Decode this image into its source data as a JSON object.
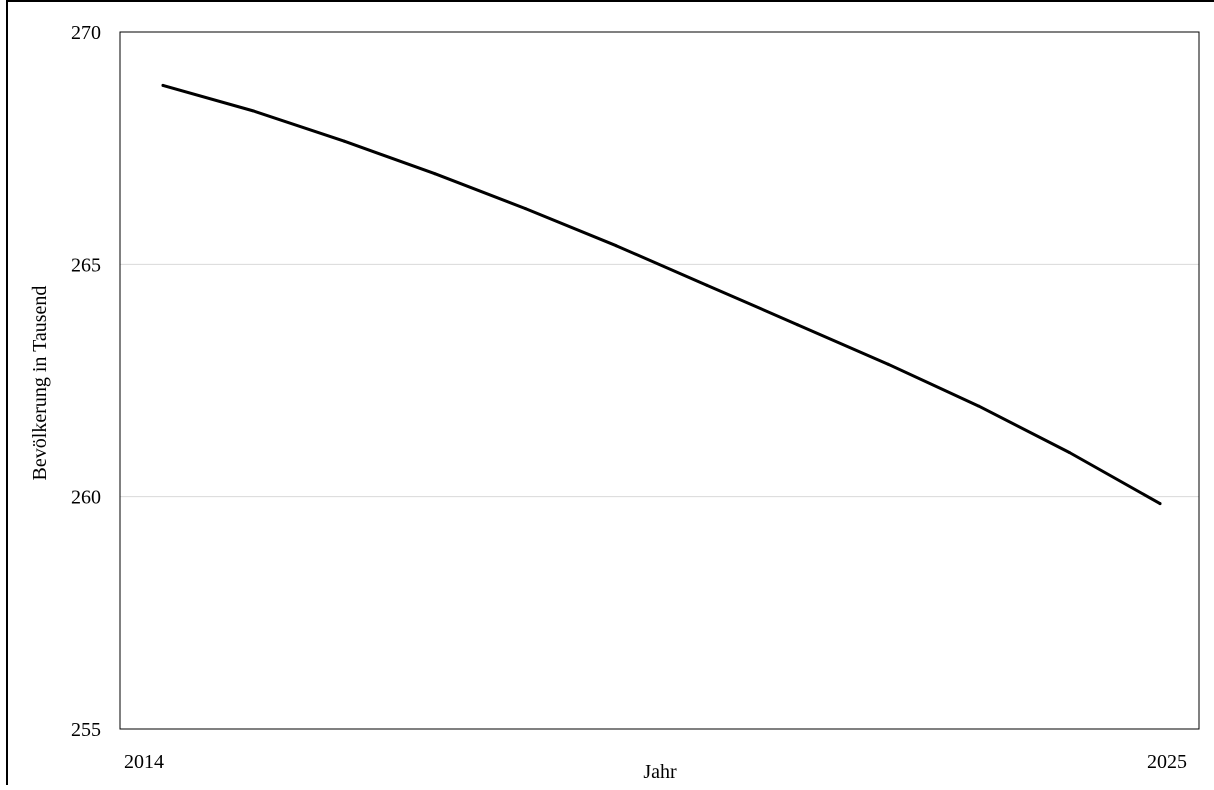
{
  "chart_data": {
    "type": "line",
    "title": "",
    "xlabel": "Jahr",
    "ylabel": "Bevölkerung in Tausend",
    "xlim": [
      2014,
      2025
    ],
    "ylim": [
      255,
      270
    ],
    "x_tick_labels": [
      "2014",
      "2025"
    ],
    "y_ticks": [
      255,
      260,
      265,
      270
    ],
    "grid": "horizontal",
    "legend": "none",
    "series": [
      {
        "color": "#000000",
        "x": [
          2014,
          2015,
          2016,
          2017,
          2018,
          2019,
          2020,
          2021,
          2022,
          2023,
          2024,
          2025
        ],
        "values": [
          268.85,
          268.3,
          267.65,
          266.95,
          266.2,
          265.4,
          264.55,
          263.7,
          262.85,
          261.95,
          260.95,
          259.85
        ]
      }
    ]
  }
}
